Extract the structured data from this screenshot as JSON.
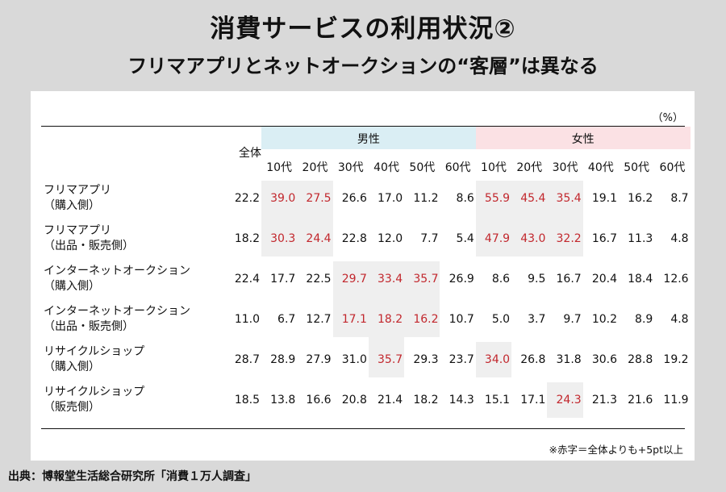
{
  "title": "消費サービスの利用状況②",
  "subtitle": "フリマアプリとネットオークションの“客層”は異なる",
  "chart_data": {
    "type": "table",
    "unit": "（%）",
    "total_label": "全体",
    "groups": [
      {
        "name": "男性",
        "color": "#daeef4"
      },
      {
        "name": "女性",
        "color": "#fbe1e4"
      }
    ],
    "age_labels": [
      "10代",
      "20代",
      "30代",
      "40代",
      "50代",
      "60代"
    ],
    "highlight_color": "#efefef",
    "highlight_text_color": "#c2272d",
    "rows": [
      {
        "label": [
          "フリマアプリ",
          "（購入側）"
        ],
        "total": "22.2",
        "values": [
          "39.0",
          "27.5",
          "26.6",
          "17.0",
          "11.2",
          "8.6",
          "55.9",
          "45.4",
          "35.4",
          "19.1",
          "16.2",
          "8.7"
        ],
        "highlight": [
          true,
          true,
          false,
          false,
          false,
          false,
          true,
          true,
          true,
          false,
          false,
          false
        ]
      },
      {
        "label": [
          "フリマアプリ",
          "（出品・販売側）"
        ],
        "total": "18.2",
        "values": [
          "30.3",
          "24.4",
          "22.8",
          "12.0",
          "7.7",
          "5.4",
          "47.9",
          "43.0",
          "32.2",
          "16.7",
          "11.3",
          "4.8"
        ],
        "highlight": [
          true,
          true,
          false,
          false,
          false,
          false,
          true,
          true,
          true,
          false,
          false,
          false
        ]
      },
      {
        "label": [
          "インターネットオークション",
          "（購入側）"
        ],
        "total": "22.4",
        "values": [
          "17.7",
          "22.5",
          "29.7",
          "33.4",
          "35.7",
          "26.9",
          "8.6",
          "9.5",
          "16.7",
          "20.4",
          "18.4",
          "12.6"
        ],
        "highlight": [
          false,
          false,
          true,
          true,
          true,
          false,
          false,
          false,
          false,
          false,
          false,
          false
        ]
      },
      {
        "label": [
          "インターネットオークション",
          "（出品・販売側）"
        ],
        "total": "11.0",
        "values": [
          "6.7",
          "12.7",
          "17.1",
          "18.2",
          "16.2",
          "10.7",
          "5.0",
          "3.7",
          "9.7",
          "10.2",
          "8.9",
          "4.8"
        ],
        "highlight": [
          false,
          false,
          true,
          true,
          true,
          false,
          false,
          false,
          false,
          false,
          false,
          false
        ]
      },
      {
        "label": [
          "リサイクルショップ",
          "（購入側）"
        ],
        "total": "28.7",
        "values": [
          "28.9",
          "27.9",
          "31.0",
          "35.7",
          "29.3",
          "23.7",
          "34.0",
          "26.8",
          "31.8",
          "30.6",
          "28.8",
          "19.2"
        ],
        "highlight": [
          false,
          false,
          false,
          true,
          false,
          false,
          true,
          false,
          false,
          false,
          false,
          false
        ]
      },
      {
        "label": [
          "リサイクルショップ",
          "（販売側）"
        ],
        "total": "18.5",
        "values": [
          "13.8",
          "16.6",
          "20.8",
          "21.4",
          "18.2",
          "14.3",
          "15.1",
          "17.1",
          "24.3",
          "21.3",
          "21.6",
          "11.9"
        ],
        "highlight": [
          false,
          false,
          false,
          false,
          false,
          false,
          false,
          false,
          true,
          false,
          false,
          false
        ]
      }
    ],
    "note": "※赤字＝全体よりも+5pt以上"
  },
  "source": "出典：博報堂生活総合研究所「消費１万人調査」"
}
